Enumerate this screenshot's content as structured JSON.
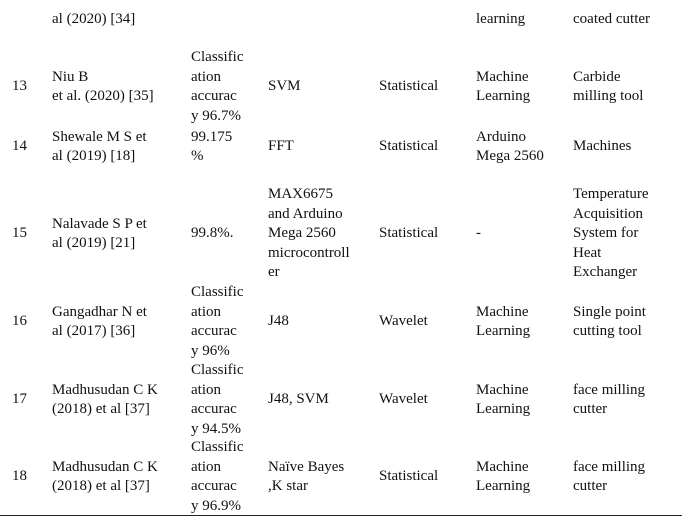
{
  "rows": [
    {
      "num": "",
      "author": [
        "al (2020) [34]"
      ],
      "accuracy": [],
      "method": [],
      "feature": [],
      "classifier": [
        "learning"
      ],
      "application": [
        "coated cutter"
      ]
    },
    {
      "num": "13",
      "author": [
        "Niu B",
        "et al. (2020) [35]"
      ],
      "accuracy": [
        "Classific",
        "ation",
        "accurac",
        "y 96.7%"
      ],
      "method": [
        "SVM"
      ],
      "feature": [
        "Statistical"
      ],
      "classifier": [
        "Machine",
        "Learning"
      ],
      "application": [
        "Carbide",
        "milling tool"
      ]
    },
    {
      "num": "14",
      "author": [
        "Shewale M S et",
        "al (2019) [18]"
      ],
      "accuracy": [
        "99.175",
        "%"
      ],
      "method": [
        "FFT"
      ],
      "feature": [
        "Statistical"
      ],
      "classifier": [
        " Arduino",
        "Mega 2560"
      ],
      "application": [
        "Machines"
      ]
    },
    {
      "num": "15",
      "author": [
        "Nalavade S  P et",
        "al (2019) [21]"
      ],
      "accuracy": [
        "99.8%."
      ],
      "method": [
        "MAX6675",
        "and Arduino",
        "Mega 2560",
        "microcontroll",
        "er"
      ],
      "feature": [
        "Statistical"
      ],
      "classifier": [
        "-"
      ],
      "application": [
        "Temperature",
        "Acquisition",
        "System for",
        "Heat",
        "Exchanger"
      ]
    },
    {
      "num": "16",
      "author": [
        "Gangadhar N  et",
        "al (2017) [36]"
      ],
      "accuracy": [
        "Classific",
        "ation",
        "accurac",
        "y 96%"
      ],
      "method": [
        "J48"
      ],
      "feature": [
        "Wavelet"
      ],
      "classifier": [
        "Machine",
        "Learning"
      ],
      "application": [
        "Single point",
        "cutting tool"
      ]
    },
    {
      "num": "17",
      "author": [
        "Madhusudan C K",
        "(2018) et al  [37]"
      ],
      "accuracy": [
        "Classific",
        "ation",
        "accurac",
        "y 94.5%"
      ],
      "method": [
        "J48, SVM"
      ],
      "feature": [
        "Wavelet"
      ],
      "classifier": [
        "Machine",
        "Learning"
      ],
      "application": [
        "face milling",
        "cutter"
      ]
    },
    {
      "num": "18",
      "author": [
        "Madhusudan C K",
        "(2018) et al  [37]"
      ],
      "accuracy": [
        "Classific",
        "ation",
        "accurac",
        "y 96.9%"
      ],
      "method": [
        "Naïve Bayes",
        ",K star"
      ],
      "feature": [
        "Statistical"
      ],
      "classifier": [
        "Machine",
        "Learning"
      ],
      "application": [
        "face milling",
        "cutter"
      ]
    }
  ]
}
